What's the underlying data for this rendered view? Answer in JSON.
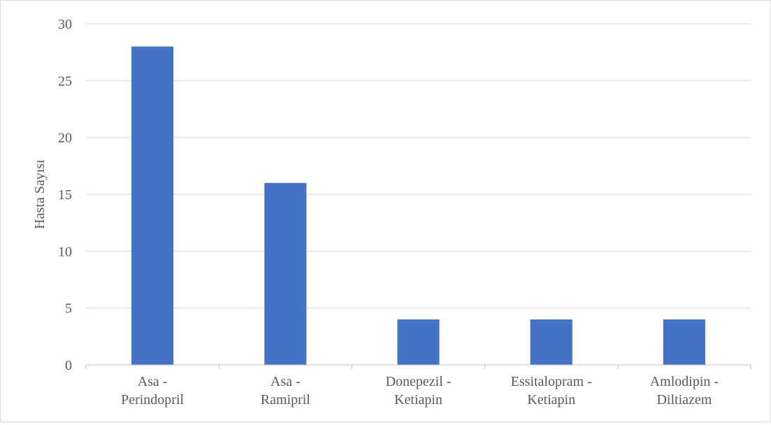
{
  "chart_data": {
    "type": "bar",
    "title": "",
    "xlabel": "",
    "ylabel": "Hasta Sayısı",
    "categories": [
      [
        "Asa -",
        "Perindopril"
      ],
      [
        "Asa -",
        "Ramipril"
      ],
      [
        "Donepezil -",
        "Ketiapin"
      ],
      [
        "Essitalopram -",
        "Ketiapin"
      ],
      [
        "Amlodipin -",
        "Diltiazem"
      ]
    ],
    "values": [
      28,
      16,
      4,
      4,
      4
    ],
    "ylim": [
      0,
      30
    ],
    "yticks": [
      "0",
      "5",
      "10",
      "15",
      "20",
      "25",
      "30"
    ],
    "grid": true,
    "colors": {
      "bar": "#4472c4",
      "grid": "#d9d9d9",
      "axis": "#bfbfbf",
      "text": "#595959"
    }
  }
}
